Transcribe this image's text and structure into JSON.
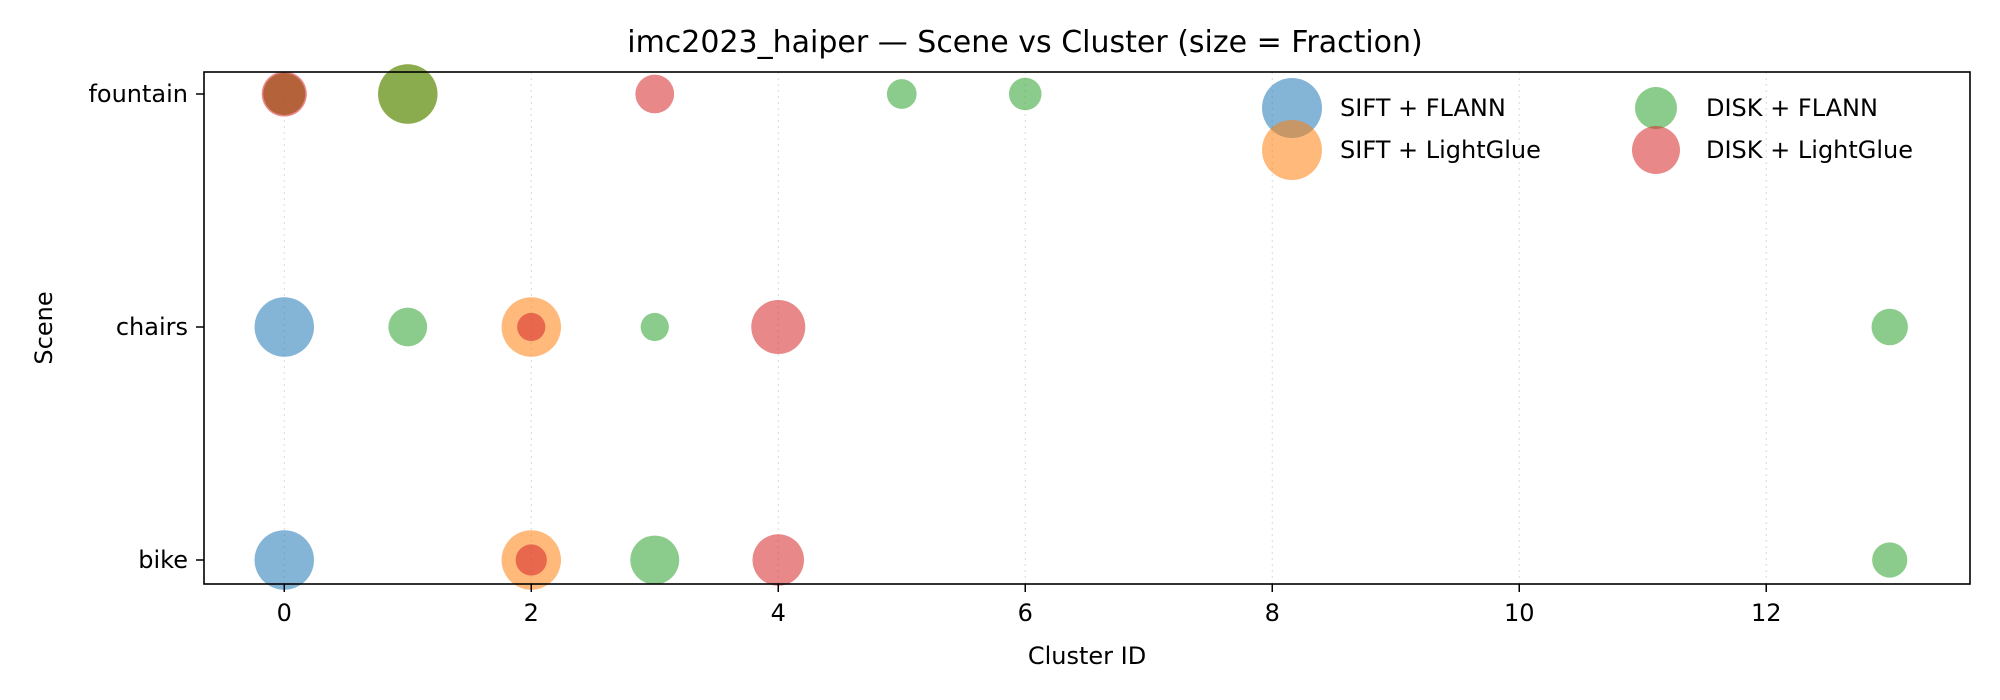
{
  "chart_data": {
    "type": "scatter",
    "title": "imc2023_haiper — Scene vs Cluster (size = Fraction)",
    "xlabel": "Cluster ID",
    "ylabel": "Scene",
    "xlim": [
      -0.65,
      13.65
    ],
    "xticks": [
      0,
      2,
      4,
      6,
      8,
      10,
      12
    ],
    "categories": [
      "bike",
      "chairs",
      "fountain"
    ],
    "grid": "x-dotted",
    "legend_placement": "top-right",
    "series": [
      {
        "name": "SIFT + FLANN",
        "color": "#1f77b4",
        "points": [
          {
            "x": 0,
            "y": "chairs",
            "fraction": 0.4
          },
          {
            "x": 0,
            "y": "bike",
            "fraction": 0.4
          }
        ]
      },
      {
        "name": "SIFT + LightGlue",
        "color": "#ff7f0e",
        "points": [
          {
            "x": 0,
            "y": "fountain",
            "fraction": 0.2
          },
          {
            "x": 1,
            "y": "fountain",
            "fraction": 0.4
          },
          {
            "x": 2,
            "y": "chairs",
            "fraction": 0.4
          },
          {
            "x": 2,
            "y": "bike",
            "fraction": 0.4
          }
        ]
      },
      {
        "name": "DISK + FLANN",
        "color": "#2ca02c",
        "points": [
          {
            "x": 0,
            "y": "fountain",
            "fraction": 0.2
          },
          {
            "x": 1,
            "y": "fountain",
            "fraction": 0.4
          },
          {
            "x": 5,
            "y": "fountain",
            "fraction": 0.1
          },
          {
            "x": 6,
            "y": "fountain",
            "fraction": 0.12
          },
          {
            "x": 1,
            "y": "chairs",
            "fraction": 0.17
          },
          {
            "x": 3,
            "y": "chairs",
            "fraction": 0.09
          },
          {
            "x": 13,
            "y": "chairs",
            "fraction": 0.15
          },
          {
            "x": 3,
            "y": "bike",
            "fraction": 0.27
          },
          {
            "x": 13,
            "y": "bike",
            "fraction": 0.14
          }
        ]
      },
      {
        "name": "DISK + LightGlue",
        "color": "#d62728",
        "points": [
          {
            "x": 0,
            "y": "fountain",
            "fraction": 0.23
          },
          {
            "x": 3,
            "y": "fountain",
            "fraction": 0.17
          },
          {
            "x": 2,
            "y": "chairs",
            "fraction": 0.09
          },
          {
            "x": 4,
            "y": "chairs",
            "fraction": 0.33
          },
          {
            "x": 2,
            "y": "bike",
            "fraction": 0.11
          },
          {
            "x": 4,
            "y": "bike",
            "fraction": 0.3
          }
        ]
      }
    ]
  }
}
